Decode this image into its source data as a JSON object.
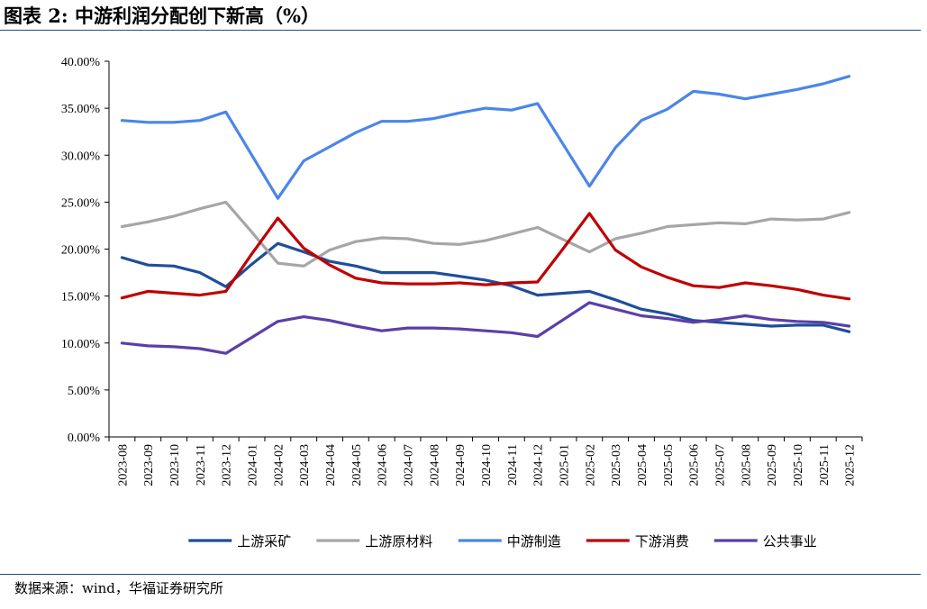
{
  "header": {
    "title": "图表 2:  中游利润分配创下新高（%）"
  },
  "footer": {
    "source": "数据来源：wind，华福证券研究所"
  },
  "chart_data": {
    "type": "line",
    "title": "",
    "xlabel": "",
    "ylabel": "",
    "ylim": [
      0,
      40
    ],
    "yticks": [
      "0.00%",
      "5.00%",
      "10.00%",
      "15.00%",
      "20.00%",
      "25.00%",
      "30.00%",
      "35.00%",
      "40.00%"
    ],
    "grid": false,
    "legend_position": "bottom",
    "x": [
      "2023-08",
      "2023-09",
      "2023-10",
      "2023-11",
      "2023-12",
      "2024-01",
      "2024-02",
      "2024-03",
      "2024-04",
      "2024-05",
      "2024-06",
      "2024-07",
      "2024-08",
      "2024-09",
      "2024-10",
      "2024-11",
      "2024-12",
      "2025-01",
      "2025-02",
      "2025-03",
      "2025-04",
      "2025-05",
      "2025-06",
      "2025-07",
      "2025-08",
      "2025-09",
      "2025-10",
      "2025-11",
      "2025-12"
    ],
    "series": [
      {
        "name": "上游采矿",
        "color": "#1f4e9a",
        "values": [
          19.1,
          18.3,
          18.2,
          17.5,
          16.0,
          18.4,
          20.6,
          19.7,
          18.7,
          18.2,
          17.5,
          17.5,
          17.5,
          17.1,
          16.7,
          16.1,
          15.1,
          15.3,
          15.5,
          14.6,
          13.6,
          13.1,
          12.4,
          12.2,
          12.0,
          11.8,
          11.9,
          11.9,
          11.2
        ]
      },
      {
        "name": "上游原材料",
        "color": "#a6a6a6",
        "values": [
          22.4,
          22.9,
          23.5,
          24.3,
          25.0,
          21.8,
          18.5,
          18.2,
          19.9,
          20.8,
          21.2,
          21.1,
          20.6,
          20.5,
          20.9,
          21.6,
          22.3,
          21.0,
          19.7,
          21.1,
          21.7,
          22.4,
          22.6,
          22.8,
          22.7,
          23.2,
          23.1,
          23.2,
          23.9
        ]
      },
      {
        "name": "中游制造",
        "color": "#4a86e8",
        "values": [
          33.7,
          33.5,
          33.5,
          33.7,
          34.6,
          30.0,
          25.4,
          29.4,
          30.9,
          32.4,
          33.6,
          33.6,
          33.9,
          34.5,
          35.0,
          34.8,
          35.5,
          31.1,
          26.7,
          30.8,
          33.7,
          34.9,
          36.8,
          36.5,
          36.0,
          36.5,
          37.0,
          37.6,
          38.4
        ]
      },
      {
        "name": "下游消费",
        "color": "#c00000",
        "values": [
          14.8,
          15.5,
          15.3,
          15.1,
          15.5,
          19.5,
          23.3,
          20.1,
          18.3,
          16.9,
          16.4,
          16.3,
          16.3,
          16.4,
          16.2,
          16.4,
          16.5,
          20.1,
          23.8,
          19.9,
          18.1,
          17.0,
          16.1,
          15.9,
          16.4,
          16.1,
          15.7,
          15.1,
          14.7
        ]
      },
      {
        "name": "公共事业",
        "color": "#5b3fa8",
        "values": [
          10.0,
          9.7,
          9.6,
          9.4,
          8.9,
          10.6,
          12.3,
          12.8,
          12.4,
          11.8,
          11.3,
          11.6,
          11.6,
          11.5,
          11.3,
          11.1,
          10.7,
          12.5,
          14.3,
          13.6,
          12.9,
          12.6,
          12.2,
          12.5,
          12.9,
          12.5,
          12.3,
          12.2,
          11.8
        ]
      }
    ]
  }
}
